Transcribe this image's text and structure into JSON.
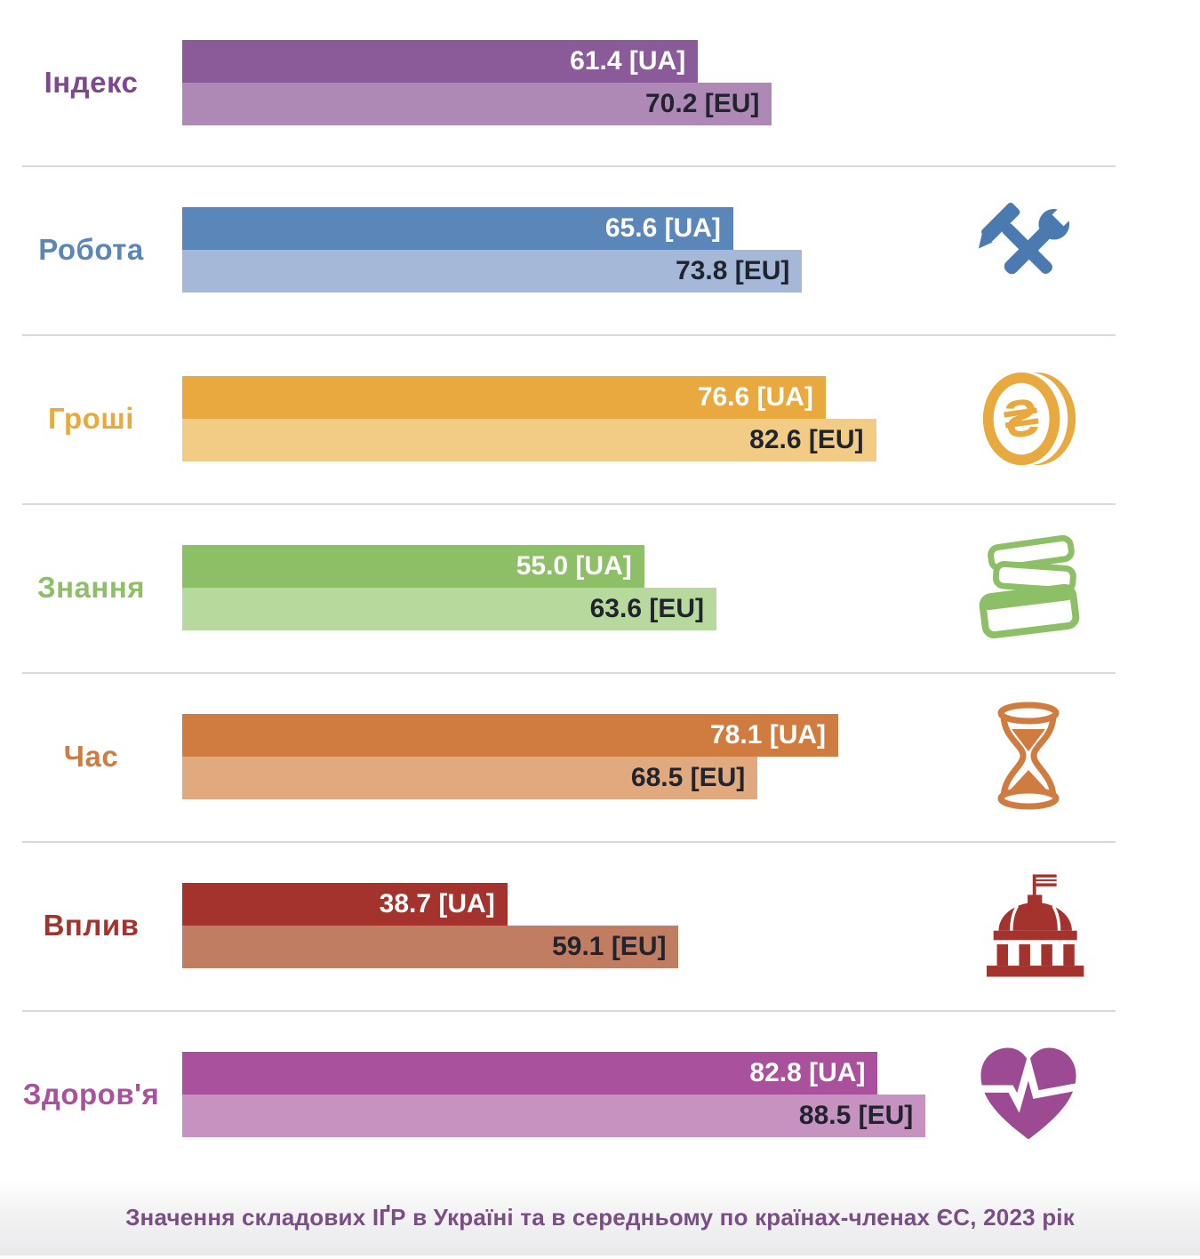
{
  "caption": "Значення складових ІҐР в Україні та в середньому по країнах-членах ЄС, 2023 рік",
  "rows": [
    {
      "label": "Індекс",
      "ua_label": "61.4 [UA]",
      "eu_label": "70.2 [EU]",
      "ua_value": 61.4,
      "eu_value": 70.2,
      "color_dark": "#8b5a98",
      "color_light": "#ae89b6",
      "label_color": "#7d4890",
      "icon_color": "#8b5a98",
      "icon": null
    },
    {
      "label": "Робота",
      "ua_label": "65.6 [UA]",
      "eu_label": "73.8 [EU]",
      "ua_value": 65.6,
      "eu_value": 73.8,
      "color_dark": "#5b86ba",
      "color_light": "#a6b8d8",
      "label_color": "#5b86ba",
      "icon_color": "#4a7ab0",
      "icon": "tools-icon"
    },
    {
      "label": "Гроші",
      "ua_label": "76.6 [UA]",
      "eu_label": "82.6 [EU]",
      "ua_value": 76.6,
      "eu_value": 82.6,
      "color_dark": "#e9a93f",
      "color_light": "#f2cb85",
      "label_color": "#e9a93f",
      "icon_color": "#e8a93e",
      "icon": "hryvnia-coin-icon"
    },
    {
      "label": "Знання",
      "ua_label": "55.0 [UA]",
      "eu_label": "63.6 [EU]",
      "ua_value": 55.0,
      "eu_value": 63.6,
      "color_dark": "#8dbf66",
      "color_light": "#b8d99e",
      "label_color": "#8dbf66",
      "icon_color": "#8dbf66",
      "icon": "books-icon"
    },
    {
      "label": "Час",
      "ua_label": "78.1 [UA]",
      "eu_label": "68.5 [EU]",
      "ua_value": 78.1,
      "eu_value": 68.5,
      "color_dark": "#d07c40",
      "color_light": "#e0a97e",
      "label_color": "#d07c40",
      "icon_color": "#d07c40",
      "icon": "hourglass-icon"
    },
    {
      "label": "Вплив",
      "ua_label": "38.7 [UA]",
      "eu_label": "59.1 [EU]",
      "ua_value": 38.7,
      "eu_value": 59.1,
      "color_dark": "#a4332d",
      "color_light": "#c07d61",
      "label_color": "#a4332d",
      "icon_color": "#a4332d",
      "icon": "capitol-icon"
    },
    {
      "label": "Здоров'я",
      "ua_label": "82.8 [UA]",
      "eu_label": "88.5 [EU]",
      "ua_value": 82.8,
      "eu_value": 88.5,
      "color_dark": "#a9519d",
      "color_light": "#c693c1",
      "label_color": "#a9519d",
      "icon_color": "#9c4b93",
      "icon": "heart-pulse-icon"
    }
  ],
  "chart_data": {
    "type": "bar",
    "orientation": "horizontal",
    "title": "Значення складових ІҐР в Україні та в середньому по країнах-членах ЄС, 2023 рік",
    "categories": [
      "Індекс",
      "Робота",
      "Гроші",
      "Знання",
      "Час",
      "Вплив",
      "Здоров'я"
    ],
    "series": [
      {
        "name": "UA",
        "values": [
          61.4,
          65.6,
          76.6,
          55.0,
          78.1,
          38.7,
          82.8
        ]
      },
      {
        "name": "EU",
        "values": [
          70.2,
          73.8,
          82.6,
          63.6,
          68.5,
          59.1,
          88.5
        ]
      }
    ],
    "xlim": [
      0,
      100
    ],
    "grid": false,
    "data_labels": true,
    "legend_position": "inline-suffix",
    "ua_suffix": "[UA]",
    "eu_suffix": "[EU]"
  }
}
